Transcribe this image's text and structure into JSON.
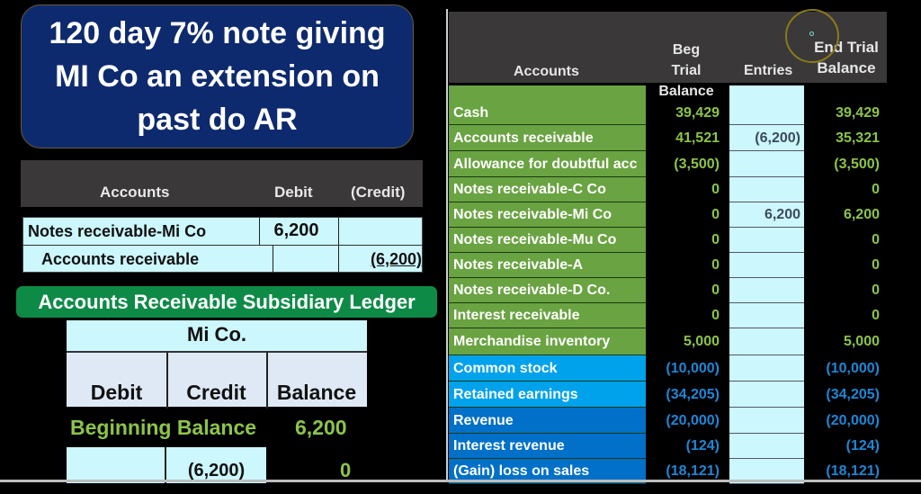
{
  "title": {
    "lines": [
      "120 day 7% note giving",
      "MI Co an extension on",
      "past do AR"
    ]
  },
  "journal": {
    "headers": {
      "accounts": "Accounts",
      "debit": "Debit",
      "credit": "(Credit)"
    },
    "rows": [
      {
        "account": "Notes receivable-Mi Co",
        "debit": "6,200",
        "credit": ""
      },
      {
        "account": "Accounts receivable",
        "debit": "",
        "credit": "(6,200)"
      }
    ]
  },
  "ledger": {
    "banner": "Accounts Receivable Subsidiary Ledger",
    "customer": "Mi Co.",
    "headers": {
      "debit": "Debit",
      "credit": "Credit",
      "balance": "Balance"
    },
    "beginning_label": "Beginning Balance",
    "beginning_value": "6,200",
    "rows": [
      {
        "debit": "",
        "credit": "(6,200)",
        "balance": "0"
      }
    ]
  },
  "trial_balance": {
    "headers": {
      "accounts": "Accounts",
      "beg_line1": "Beg Trial",
      "beg_line2": "Balance",
      "entries": "Entries",
      "end_line1": "End Trial",
      "end_line2": "Balance"
    },
    "colors": {
      "asset": "#6aa342",
      "equity": "#00a2ec",
      "revenue": "#0070c8",
      "asset_text": "#8dc44a",
      "credit_text": "#1f86d6"
    },
    "rows": [
      {
        "account": "Cash",
        "beg": "39,429",
        "entry": "",
        "end": "39,429",
        "type": "asset"
      },
      {
        "account": "Accounts receivable",
        "beg": "41,521",
        "entry": "(6,200)",
        "end": "35,321",
        "type": "asset"
      },
      {
        "account": "Allowance for doubtful acc",
        "beg": "(3,500)",
        "entry": "",
        "end": "(3,500)",
        "type": "asset"
      },
      {
        "account": "Notes receivable-C Co",
        "beg": "0",
        "entry": "",
        "end": "0",
        "type": "asset"
      },
      {
        "account": "Notes receivable-Mi Co",
        "beg": "0",
        "entry": "6,200",
        "end": "6,200",
        "type": "asset"
      },
      {
        "account": "Notes receivable-Mu Co",
        "beg": "0",
        "entry": "",
        "end": "0",
        "type": "asset"
      },
      {
        "account": "Notes receivable-A",
        "beg": "0",
        "entry": "",
        "end": "0",
        "type": "asset"
      },
      {
        "account": "Notes receivable-D Co.",
        "beg": "0",
        "entry": "",
        "end": "0",
        "type": "asset"
      },
      {
        "account": "Interest receivable",
        "beg": "0",
        "entry": "",
        "end": "0",
        "type": "asset"
      },
      {
        "account": "Merchandise inventory",
        "beg": "5,000",
        "entry": "",
        "end": "5,000",
        "type": "asset"
      },
      {
        "account": "Common stock",
        "beg": "(10,000)",
        "entry": "",
        "end": "(10,000)",
        "type": "equity"
      },
      {
        "account": "Retained earnings",
        "beg": "(34,205)",
        "entry": "",
        "end": "(34,205)",
        "type": "equity"
      },
      {
        "account": "Revenue",
        "beg": "(20,000)",
        "entry": "",
        "end": "(20,000)",
        "type": "revenue"
      },
      {
        "account": "Interest revenue",
        "beg": "(124)",
        "entry": "",
        "end": "(124)",
        "type": "revenue"
      },
      {
        "account": "(Gain) loss on sales",
        "beg": "(18,121)",
        "entry": "",
        "end": "(18,121)",
        "type": "revenue"
      }
    ]
  }
}
